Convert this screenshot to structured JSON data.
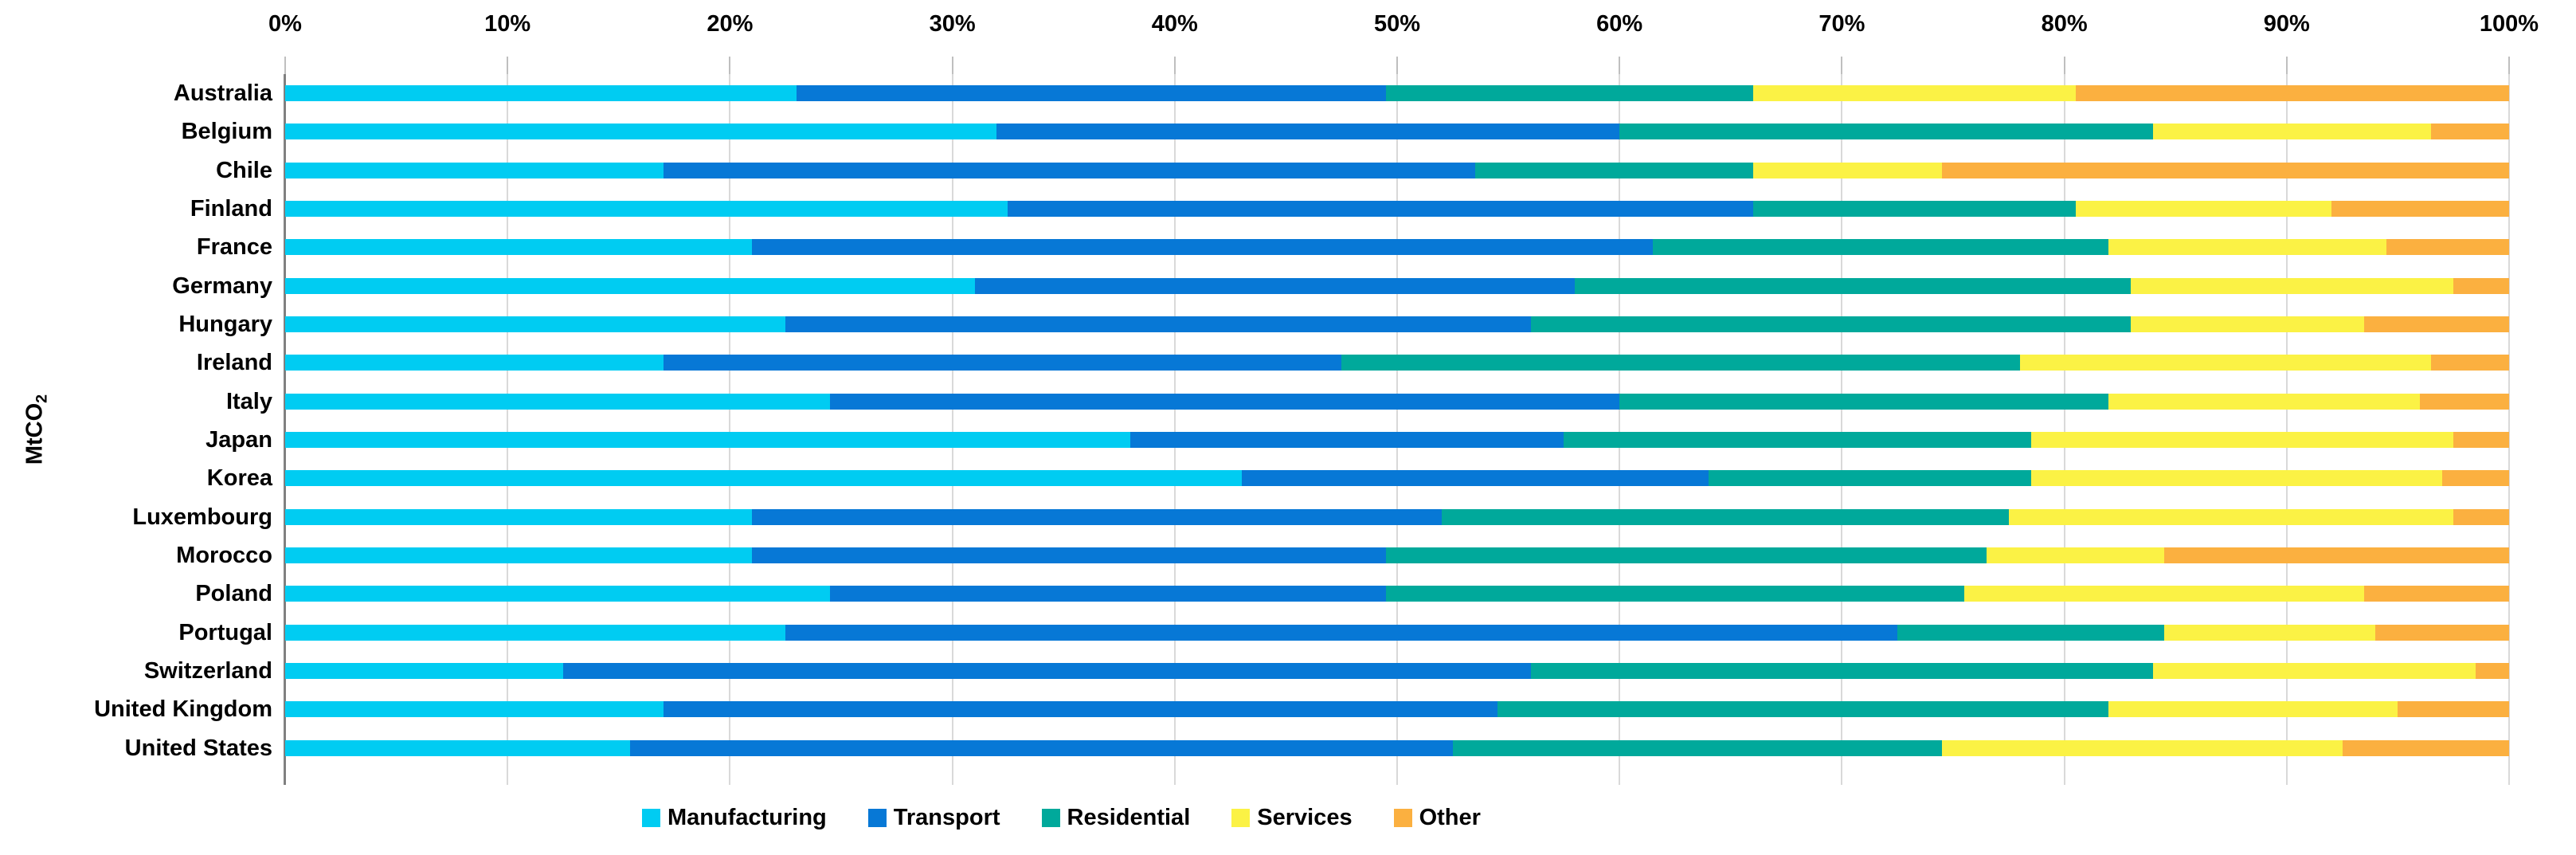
{
  "chart_data": {
    "type": "bar",
    "orientation": "horizontal",
    "stacked": true,
    "title": "",
    "unit": "percent",
    "y_axis_label": {
      "text": "MtCO",
      "subscript": "2"
    },
    "x_axis": {
      "min": 0,
      "max": 100,
      "tick_labels": [
        "0%",
        "10%",
        "20%",
        "30%",
        "40%",
        "50%",
        "60%",
        "70%",
        "80%",
        "90%",
        "100%"
      ],
      "position": "top",
      "grid": true
    },
    "categories": [
      "Australia",
      "Belgium",
      "Chile",
      "Finland",
      "France",
      "Germany",
      "Hungary",
      "Ireland",
      "Italy",
      "Japan",
      "Korea",
      "Luxembourg",
      "Morocco",
      "Poland",
      "Portugal",
      "Switzerland",
      "United Kingdom",
      "United States"
    ],
    "series": [
      {
        "name": "Manufacturing",
        "color": "#00ccf2",
        "values": [
          23,
          32,
          17,
          32.5,
          21,
          31,
          22.5,
          17,
          24.5,
          38,
          43,
          21,
          21,
          24.5,
          22.5,
          12.5,
          17,
          15.5
        ]
      },
      {
        "name": "Transport",
        "color": "#0778d6",
        "values": [
          26.5,
          28,
          36.5,
          33.5,
          40.5,
          27,
          33.5,
          30.5,
          35.5,
          19.5,
          21,
          31,
          28.5,
          25,
          50,
          43.5,
          37.5,
          37
        ]
      },
      {
        "name": "Residential",
        "color": "#00a99b",
        "values": [
          16.5,
          24,
          12.5,
          14.5,
          20.5,
          25,
          27,
          30.5,
          22,
          21,
          14.5,
          25.5,
          27,
          26,
          12,
          28,
          27.5,
          22
        ]
      },
      {
        "name": "Services",
        "color": "#fbf245",
        "values": [
          14.5,
          12.5,
          8.5,
          11.5,
          12.5,
          14.5,
          10.5,
          18.5,
          14,
          19,
          18.5,
          20,
          8,
          18,
          9.5,
          14.5,
          13,
          18
        ]
      },
      {
        "name": "Other",
        "color": "#fbb040",
        "values": [
          19.5,
          3.5,
          25.5,
          8,
          5.5,
          2.5,
          6.5,
          3.5,
          4,
          2.5,
          3,
          2.5,
          15.5,
          6.5,
          6,
          1.5,
          5,
          7.5
        ]
      }
    ],
    "legend": {
      "position": "bottom",
      "entries": [
        "Manufacturing",
        "Transport",
        "Residential",
        "Services",
        "Other"
      ]
    },
    "style": {
      "gridline_color": "#d9d9d9",
      "tick_color": "#bfbfbf",
      "axis_line_color": "#808080",
      "text_color": "#000000",
      "background": "#ffffff"
    }
  }
}
